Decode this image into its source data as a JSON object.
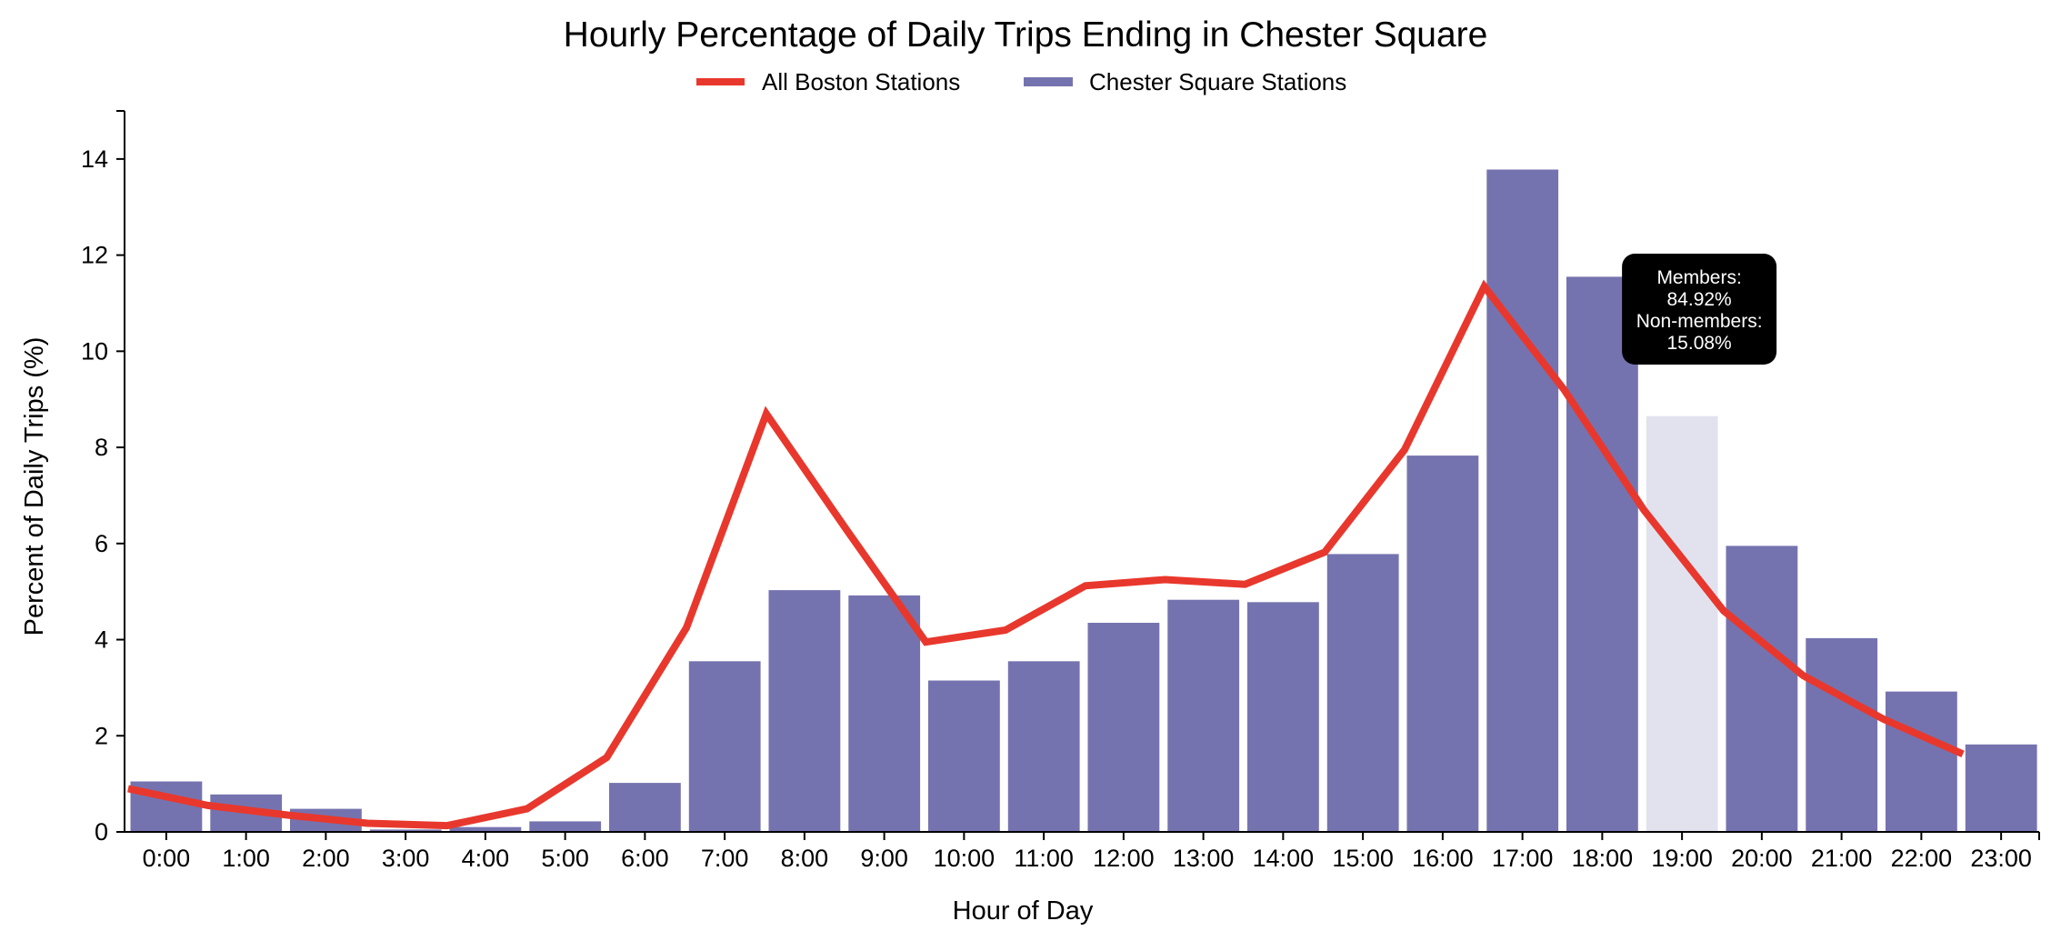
{
  "chart_data": {
    "type": "bar",
    "title": "Hourly Percentage of Daily Trips Ending in Chester Square",
    "xlabel": "Hour of Day",
    "ylabel": "Percent of Daily Trips (%)",
    "ylim": [
      0,
      15
    ],
    "yticks": [
      "0",
      "2",
      "4",
      "6",
      "8",
      "10",
      "12",
      "14"
    ],
    "grid": false,
    "legend_position": "top-center",
    "categories": [
      "0:00",
      "1:00",
      "2:00",
      "3:00",
      "4:00",
      "5:00",
      "6:00",
      "7:00",
      "8:00",
      "9:00",
      "10:00",
      "11:00",
      "12:00",
      "13:00",
      "14:00",
      "15:00",
      "16:00",
      "17:00",
      "18:00",
      "19:00",
      "20:00",
      "21:00",
      "22:00",
      "23:00"
    ],
    "series": [
      {
        "name": "Chester Square Stations",
        "kind": "bar",
        "color": "#7573af",
        "values": [
          1.05,
          0.78,
          0.48,
          0.05,
          0.1,
          0.22,
          1.02,
          3.55,
          5.03,
          4.92,
          3.15,
          3.55,
          4.35,
          4.83,
          4.78,
          5.78,
          7.83,
          13.78,
          11.55,
          8.65,
          5.95,
          4.03,
          2.92,
          1.82
        ]
      },
      {
        "name": "All Boston Stations",
        "kind": "line",
        "color": "#e8382d",
        "values": [
          0.9,
          0.55,
          0.35,
          0.18,
          0.13,
          0.48,
          1.55,
          4.25,
          8.7,
          6.3,
          3.95,
          4.2,
          5.12,
          5.25,
          5.15,
          5.82,
          7.95,
          11.35,
          9.2,
          6.7,
          4.6,
          3.25,
          2.35,
          1.62
        ]
      }
    ],
    "highlight": {
      "category": "19:00",
      "color": "#e2e2ef",
      "tooltip_lines": [
        "Members:",
        "84.92%",
        "Non-members:",
        "15.08%"
      ]
    }
  }
}
